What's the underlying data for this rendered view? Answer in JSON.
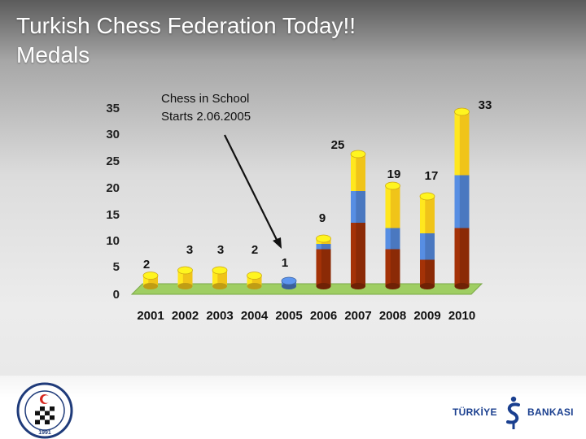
{
  "slide": {
    "title": "Turkish Chess Federation Today!!\nMedals"
  },
  "chart_data": {
    "type": "bar",
    "stacked": true,
    "categories": [
      "2001",
      "2002",
      "2003",
      "2004",
      "2005",
      "2006",
      "2007",
      "2008",
      "2009",
      "2010"
    ],
    "totals": [
      2,
      3,
      3,
      2,
      1,
      9,
      25,
      19,
      17,
      33
    ],
    "series": [
      {
        "color": "#8b2a06",
        "values": [
          0,
          0,
          0,
          0,
          0,
          7,
          12,
          7,
          5,
          11
        ]
      },
      {
        "color": "#4a78c0",
        "values": [
          0,
          0,
          0,
          0,
          1,
          1,
          6,
          4,
          5,
          10
        ]
      },
      {
        "color": "#f0c419",
        "values": [
          2,
          3,
          3,
          2,
          0,
          1,
          7,
          8,
          7,
          12
        ]
      }
    ],
    "yticks": [
      0,
      5,
      10,
      15,
      20,
      25,
      30,
      35
    ],
    "ylim": [
      0,
      35
    ],
    "annotation": {
      "line1": "Chess in School",
      "line2": "Starts 2.06.2005"
    }
  },
  "logos": {
    "bank_left": "TÜRKİYE",
    "bank_right": "BANKASI",
    "federation_year": "1991"
  }
}
